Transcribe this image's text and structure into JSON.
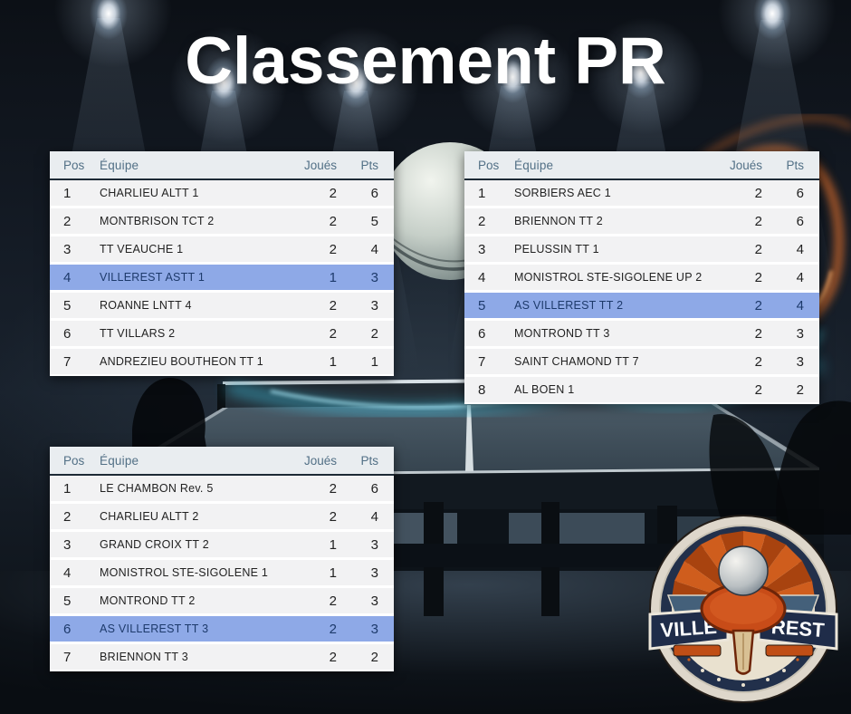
{
  "title": "Classement PR",
  "colors": {
    "highlight_row": "#8ea9e7",
    "highlight_text": "#1d3a6b",
    "header_bg": "#e9edf0",
    "header_text": "#527086",
    "row_bg": "#f2f2f3",
    "row_text": "#222222",
    "title_color": "#ffffff",
    "trail_cyan": "#3fc9ea",
    "trail_orange": "#e2702c",
    "logo_orange": "#c84c18",
    "logo_navy": "#22304b"
  },
  "tables": [
    {
      "headers": {
        "pos": "Pos",
        "team": "Équipe",
        "played": "Joués",
        "pts": "Pts"
      },
      "rows": [
        {
          "pos": "1",
          "team": "CHARLIEU ALTT 1",
          "played": "2",
          "pts": "6",
          "highlight": false
        },
        {
          "pos": "2",
          "team": "MONTBRISON TCT 2",
          "played": "2",
          "pts": "5",
          "highlight": false
        },
        {
          "pos": "3",
          "team": "TT VEAUCHE 1",
          "played": "2",
          "pts": "4",
          "highlight": false
        },
        {
          "pos": "4",
          "team": "VILLEREST ASTT 1",
          "played": "1",
          "pts": "3",
          "highlight": true
        },
        {
          "pos": "5",
          "team": "ROANNE LNTT 4",
          "played": "2",
          "pts": "3",
          "highlight": false
        },
        {
          "pos": "6",
          "team": "TT VILLARS 2",
          "played": "2",
          "pts": "2",
          "highlight": false
        },
        {
          "pos": "7",
          "team": "ANDREZIEU BOUTHEON TT 1",
          "played": "1",
          "pts": "1",
          "highlight": false
        }
      ]
    },
    {
      "headers": {
        "pos": "Pos",
        "team": "Équipe",
        "played": "Joués",
        "pts": "Pts"
      },
      "rows": [
        {
          "pos": "1",
          "team": "SORBIERS AEC 1",
          "played": "2",
          "pts": "6",
          "highlight": false
        },
        {
          "pos": "2",
          "team": "BRIENNON TT 2",
          "played": "2",
          "pts": "6",
          "highlight": false
        },
        {
          "pos": "3",
          "team": "PELUSSIN TT 1",
          "played": "2",
          "pts": "4",
          "highlight": false
        },
        {
          "pos": "4",
          "team": "MONISTROL STE-SIGOLENE UP 2",
          "played": "2",
          "pts": "4",
          "highlight": false
        },
        {
          "pos": "5",
          "team": "AS VILLEREST TT 2",
          "played": "2",
          "pts": "4",
          "highlight": true
        },
        {
          "pos": "6",
          "team": "MONTROND TT 3",
          "played": "2",
          "pts": "3",
          "highlight": false
        },
        {
          "pos": "7",
          "team": "SAINT CHAMOND TT 7",
          "played": "2",
          "pts": "3",
          "highlight": false
        },
        {
          "pos": "8",
          "team": "AL BOEN 1",
          "played": "2",
          "pts": "2",
          "highlight": false
        }
      ]
    },
    {
      "headers": {
        "pos": "Pos",
        "team": "Équipe",
        "played": "Joués",
        "pts": "Pts"
      },
      "rows": [
        {
          "pos": "1",
          "team": "LE CHAMBON Rev. 5",
          "played": "2",
          "pts": "6",
          "highlight": false
        },
        {
          "pos": "2",
          "team": "CHARLIEU ALTT 2",
          "played": "2",
          "pts": "4",
          "highlight": false
        },
        {
          "pos": "3",
          "team": "GRAND CROIX TT 2",
          "played": "1",
          "pts": "3",
          "highlight": false
        },
        {
          "pos": "4",
          "team": "MONISTROL STE-SIGOLENE 1",
          "played": "1",
          "pts": "3",
          "highlight": false
        },
        {
          "pos": "5",
          "team": "MONTROND TT 2",
          "played": "2",
          "pts": "3",
          "highlight": false
        },
        {
          "pos": "6",
          "team": "AS VILLEREST TT 3",
          "played": "2",
          "pts": "3",
          "highlight": true
        },
        {
          "pos": "7",
          "team": "BRIENNON TT 3",
          "played": "2",
          "pts": "2",
          "highlight": false
        }
      ]
    }
  ],
  "logo": {
    "text_left": "VILLE",
    "text_right": "REST"
  }
}
